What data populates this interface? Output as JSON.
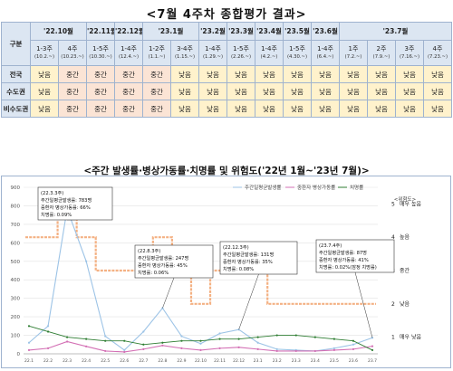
{
  "title": "<7월 4주차 종합평가 결과>",
  "table": {
    "corner": "구분",
    "months": [
      "'22.10월",
      "'22.11월",
      "'22.12월",
      "'23.1월",
      "'23.2월",
      "'23.3월",
      "'23.4월",
      "'23.5월",
      "'23.6월",
      "'23.7월"
    ],
    "weeks": [
      {
        "w": "1-3주",
        "r": "(10.2.~)"
      },
      {
        "w": "4주",
        "r": "(10.23.~)"
      },
      {
        "w": "1-5주",
        "r": "(10.30.~)"
      },
      {
        "w": "1-4주",
        "r": "(12.4.~)"
      },
      {
        "w": "1-2주",
        "r": "(1.1.~)"
      },
      {
        "w": "3-4주",
        "r": "(1.15.~)"
      },
      {
        "w": "1-4주",
        "r": "(1.29.~)"
      },
      {
        "w": "1-5주",
        "r": "(2.26.~)"
      },
      {
        "w": "1-4주",
        "r": "(4.2.~)"
      },
      {
        "w": "1-5주",
        "r": "(4.30.~)"
      },
      {
        "w": "1-4주",
        "r": "(6.4.~)"
      },
      {
        "w": "1주",
        "r": "(7.2.~)"
      },
      {
        "w": "2주",
        "r": "(7.9.~)"
      },
      {
        "w": "3주",
        "r": "(7.16.~)"
      },
      {
        "w": "4주",
        "r": "(7.23.~)"
      }
    ],
    "rows": [
      {
        "region": "전국",
        "values": [
          "낮음",
          "중간",
          "중간",
          "중간",
          "중간",
          "낮음",
          "낮음",
          "낮음",
          "낮음",
          "낮음",
          "낮음",
          "낮음",
          "낮음",
          "낮음",
          "낮음"
        ]
      },
      {
        "region": "수도권",
        "values": [
          "낮음",
          "중간",
          "중간",
          "중간",
          "중간",
          "낮음",
          "낮음",
          "낮음",
          "낮음",
          "낮음",
          "낮음",
          "낮음",
          "낮음",
          "낮음",
          "낮음"
        ]
      },
      {
        "region": "비수도권",
        "values": [
          "낮음",
          "중간",
          "중간",
          "중간",
          "중간",
          "낮음",
          "낮음",
          "낮음",
          "낮음",
          "낮음",
          "낮음",
          "낮음",
          "낮음",
          "낮음",
          "낮음"
        ]
      }
    ]
  },
  "chart_title": "<주간 발생률·병상가동률·치명률 및 위험도('22년 1월~'23년 7월)>",
  "chart": {
    "legend": [
      "주간일평균발생률",
      "중환자 병상가동률",
      "치명률"
    ],
    "colors": {
      "incidence": "#9cc3e6",
      "bed": "#d36fb4",
      "fatality": "#2e7d32",
      "risk": "#f4b183",
      "risk_peak": "#c00000"
    },
    "y_ticks": [
      "0",
      "100",
      "200",
      "300",
      "400",
      "500",
      "600",
      "700",
      "800",
      "900"
    ],
    "risk_header": "<위험도>",
    "risk_levels": [
      {
        "num": "5",
        "label": "매우 높음"
      },
      {
        "num": "4",
        "label": "높음"
      },
      {
        "num": "3",
        "label": "중간"
      },
      {
        "num": "2",
        "label": "낮음"
      },
      {
        "num": "1",
        "label": "매우 낮음"
      }
    ],
    "callouts": [
      {
        "date": "(22.3.3주)",
        "l1": "주간일평균발생률: 783명",
        "l2": "중환자 병상가동률: 66%",
        "l3": "치명률: 0.09%"
      },
      {
        "date": "(22.8.3주)",
        "l1": "주간일평균발생률: 247명",
        "l2": "중환자 병상가동률: 45%",
        "l3": "치명률: 0.06%"
      },
      {
        "date": "(22.12.3주)",
        "l1": "주간일평균발생률: 131명",
        "l2": "중환자 병상가동률: 35%",
        "l3": "치명률: 0.08%"
      },
      {
        "date": "(23.7.4주)",
        "l1": "주간일평균발생률: 87명",
        "l2": "중환자 병상가동률: 41%",
        "l3": "치명률: 0.02%(잠정 치명률)"
      }
    ]
  },
  "chart_data": {
    "type": "line",
    "x": [
      "22.1",
      "22.2",
      "22.3",
      "22.4",
      "22.5",
      "22.6",
      "22.7",
      "22.8",
      "22.9",
      "22.10",
      "22.11",
      "22.12",
      "23.1",
      "23.2",
      "23.3",
      "23.4",
      "23.5",
      "23.6",
      "23.7"
    ],
    "series": [
      {
        "name": "주간일평균발생률",
        "values": [
          60,
          150,
          783,
          500,
          95,
          20,
          120,
          247,
          95,
          55,
          110,
          131,
          60,
          25,
          20,
          15,
          30,
          50,
          87
        ]
      },
      {
        "name": "중환자 병상가동률",
        "values": [
          20,
          30,
          66,
          40,
          15,
          10,
          25,
          45,
          30,
          20,
          30,
          35,
          25,
          15,
          15,
          15,
          20,
          25,
          41
        ]
      },
      {
        "name": "치명률",
        "values": [
          0.15,
          0.12,
          0.09,
          0.08,
          0.07,
          0.07,
          0.05,
          0.06,
          0.07,
          0.07,
          0.08,
          0.08,
          0.09,
          0.1,
          0.1,
          0.09,
          0.08,
          0.07,
          0.02
        ]
      }
    ],
    "risk_level": [
      4,
      4,
      5,
      4,
      3,
      3,
      3,
      4,
      3,
      2,
      3,
      3,
      3,
      2,
      2,
      2,
      2,
      2,
      2
    ],
    "ylim": [
      0,
      900
    ]
  }
}
